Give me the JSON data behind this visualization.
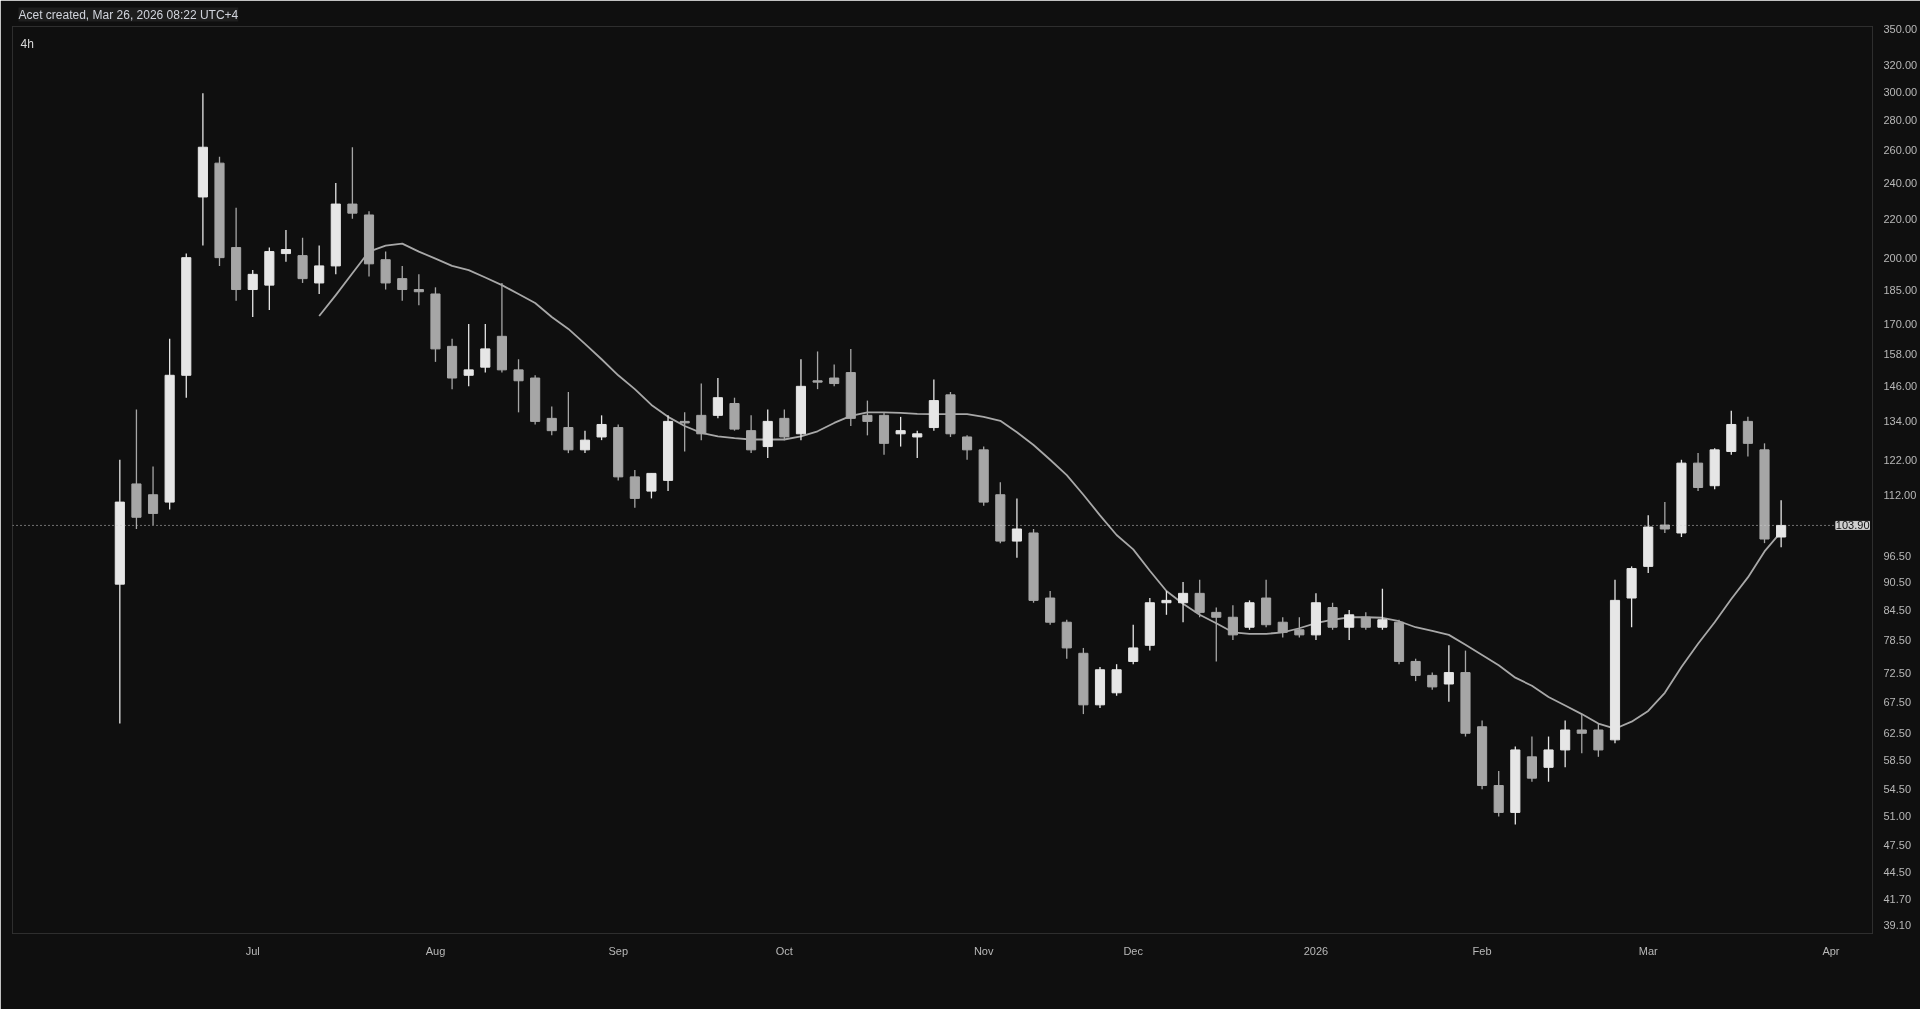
{
  "chart_data": {
    "type": "candlestick",
    "title": "4h",
    "annotations": [
      "Acet created, Mar 26, 2026 08:22 UTC+4"
    ],
    "categories": [
      null,
      null,
      null,
      null,
      null,
      null,
      null,
      null,
      "Jul",
      null,
      null,
      null,
      null,
      null,
      null,
      null,
      null,
      null,
      null,
      "Aug",
      null,
      null,
      null,
      null,
      null,
      null,
      null,
      null,
      null,
      null,
      "Sep",
      null,
      null,
      null,
      null,
      null,
      null,
      null,
      null,
      null,
      "Oct",
      null,
      null,
      null,
      null,
      null,
      null,
      null,
      null,
      null,
      null,
      null,
      "Nov",
      null,
      null,
      null,
      null,
      null,
      null,
      null,
      null,
      "Dec",
      null,
      null,
      null,
      null,
      null,
      null,
      null,
      null,
      null,
      null,
      "2026",
      null,
      null,
      null,
      null,
      null,
      null,
      null,
      null,
      null,
      "Feb",
      null,
      null,
      null,
      null,
      null,
      null,
      null,
      null,
      null,
      "Mar",
      null,
      null,
      null,
      null,
      null,
      null,
      null,
      null,
      null,
      null,
      "Apr"
    ],
    "ohlc": [
      [
        90,
        122,
        64,
        110
      ],
      [
        115,
        138,
        103,
        106
      ],
      [
        112,
        120,
        104,
        107
      ],
      [
        110,
        164,
        108,
        150
      ],
      [
        150,
        202,
        142,
        200
      ],
      [
        232,
        299,
        206,
        262
      ],
      [
        252,
        256,
        196,
        200
      ],
      [
        205,
        226,
        180,
        185
      ],
      [
        185,
        194,
        173,
        192
      ],
      [
        187,
        205,
        176,
        203
      ],
      [
        202,
        214,
        198,
        204
      ],
      [
        201,
        210,
        188,
        190
      ],
      [
        188,
        206,
        183,
        196
      ],
      [
        196,
        240,
        192,
        228
      ],
      [
        228,
        262,
        220,
        223
      ],
      [
        222,
        224,
        191,
        197
      ],
      [
        199,
        203,
        185,
        188
      ],
      [
        190,
        196,
        180,
        185
      ],
      [
        185,
        192,
        178,
        184
      ],
      [
        183,
        186,
        155,
        160
      ],
      [
        161,
        164,
        145,
        149
      ],
      [
        150,
        170,
        146,
        152
      ],
      [
        153,
        170,
        151,
        160
      ],
      [
        165,
        188,
        151,
        152
      ],
      [
        152,
        156,
        137,
        148
      ],
      [
        149,
        150,
        133,
        134
      ],
      [
        135,
        139,
        129.5,
        131
      ],
      [
        132,
        144,
        124,
        125
      ],
      [
        125,
        131,
        124,
        128
      ],
      [
        129,
        136,
        128,
        133
      ],
      [
        132,
        133,
        116,
        117
      ],
      [
        117,
        119,
        108.5,
        111
      ],
      [
        113,
        118,
        111,
        118
      ],
      [
        116,
        136,
        113,
        134
      ],
      [
        134,
        137,
        124.5,
        133.5
      ],
      [
        136,
        147,
        128,
        130
      ],
      [
        136,
        149,
        135,
        142
      ],
      [
        140,
        142,
        131,
        131.5
      ],
      [
        131,
        136,
        124,
        125
      ],
      [
        126,
        138,
        122.5,
        134
      ],
      [
        135,
        138,
        128,
        129
      ],
      [
        130,
        156,
        128,
        146
      ],
      [
        148,
        159,
        145,
        147.5
      ],
      [
        149,
        154,
        146,
        147
      ],
      [
        151,
        160,
        132.5,
        135
      ],
      [
        136,
        141,
        129.5,
        134
      ],
      [
        136,
        137,
        123.5,
        127
      ],
      [
        130,
        135.5,
        126,
        131
      ],
      [
        129,
        131,
        122.5,
        130
      ],
      [
        132,
        148.5,
        131,
        141
      ],
      [
        143,
        144,
        129,
        130
      ],
      [
        129,
        129.5,
        122,
        125
      ],
      [
        125,
        126,
        109,
        110
      ],
      [
        112,
        115.5,
        99.5,
        100
      ],
      [
        100,
        111,
        96,
        103
      ],
      [
        102,
        103,
        86,
        86.5
      ],
      [
        87,
        88.5,
        81.5,
        82
      ],
      [
        82,
        82.5,
        75,
        77
      ],
      [
        76,
        77,
        65.5,
        67
      ],
      [
        67,
        73.5,
        66.5,
        73
      ],
      [
        69,
        74,
        68.5,
        73
      ],
      [
        74.5,
        81.5,
        74,
        77
      ],
      [
        77.5,
        87,
        76.5,
        86
      ],
      [
        86,
        88.5,
        83.5,
        86.5
      ],
      [
        86,
        90.5,
        82,
        88
      ],
      [
        88,
        91,
        83,
        84
      ],
      [
        84,
        85,
        74.5,
        83
      ],
      [
        83,
        85.5,
        78.5,
        79.5
      ],
      [
        81,
        86.5,
        80.5,
        86
      ],
      [
        87,
        91,
        81,
        81.5
      ],
      [
        82,
        83,
        79,
        80
      ],
      [
        80.5,
        83,
        79,
        79.5
      ],
      [
        79.5,
        88,
        78.5,
        86
      ],
      [
        85,
        86,
        80.5,
        81
      ],
      [
        81,
        84.5,
        78.5,
        83.5
      ],
      [
        83,
        84,
        80.5,
        81
      ],
      [
        81,
        89,
        80.5,
        82.5
      ],
      [
        82,
        82.5,
        74,
        74.5
      ],
      [
        74.5,
        75,
        71,
        72
      ],
      [
        72,
        72.5,
        69.5,
        70
      ],
      [
        70.5,
        77.5,
        67.5,
        72.5
      ],
      [
        72.5,
        76.5,
        62,
        62.5
      ],
      [
        63.5,
        64.5,
        54.5,
        55
      ],
      [
        55,
        57,
        51,
        51.5
      ],
      [
        51.5,
        60.5,
        50,
        60
      ],
      [
        59,
        62,
        55.5,
        56
      ],
      [
        57.5,
        62,
        55.5,
        60
      ],
      [
        60,
        64.5,
        57.5,
        63
      ],
      [
        63,
        65.5,
        59.5,
        62.5
      ],
      [
        63,
        64,
        59,
        60
      ],
      [
        61.5,
        91,
        61,
        86.5
      ],
      [
        87,
        94,
        81,
        93.5
      ],
      [
        94,
        106.5,
        92.5,
        103.5
      ],
      [
        104,
        110,
        102,
        103
      ],
      [
        102,
        122,
        101,
        121
      ],
      [
        121,
        124,
        113,
        114
      ],
      [
        114.5,
        125.5,
        113.5,
        125
      ],
      [
        124.5,
        137.5,
        123.5,
        133
      ],
      [
        134,
        135.5,
        123,
        127
      ],
      [
        125,
        127,
        99.5,
        100.5
      ],
      [
        101,
        110.5,
        98.5,
        103.9
      ],
      null,
      null,
      null
    ],
    "colors": [
      "#e6e6e6",
      "#a6a6a6",
      "#a6a6a6",
      "#e6e6e6",
      "#e6e6e6",
      "#e6e6e6",
      "#a6a6a6",
      "#a6a6a6",
      "#e6e6e6",
      "#e6e6e6",
      "#e6e6e6",
      "#a6a6a6",
      "#e6e6e6",
      "#e6e6e6",
      "#a6a6a6",
      "#a6a6a6",
      "#a6a6a6",
      "#a6a6a6",
      "#a6a6a6",
      "#a6a6a6",
      "#a6a6a6",
      "#e6e6e6",
      "#e6e6e6",
      "#a6a6a6",
      "#a6a6a6",
      "#a6a6a6",
      "#a6a6a6",
      "#a6a6a6",
      "#e6e6e6",
      "#e6e6e6",
      "#a6a6a6",
      "#a6a6a6",
      "#e6e6e6",
      "#e6e6e6",
      "#a6a6a6",
      "#a6a6a6",
      "#e6e6e6",
      "#a6a6a6",
      "#a6a6a6",
      "#e6e6e6",
      "#a6a6a6",
      "#e6e6e6",
      "#a6a6a6",
      "#a6a6a6",
      "#a6a6a6",
      "#a6a6a6",
      "#a6a6a6",
      "#e6e6e6",
      "#e6e6e6",
      "#e6e6e6",
      "#a6a6a6",
      "#a6a6a6",
      "#a6a6a6",
      "#a6a6a6",
      "#e6e6e6",
      "#a6a6a6",
      "#a6a6a6",
      "#a6a6a6",
      "#a6a6a6",
      "#e6e6e6",
      "#e6e6e6",
      "#e6e6e6",
      "#e6e6e6",
      "#e6e6e6",
      "#e6e6e6",
      "#a6a6a6",
      "#a6a6a6",
      "#a6a6a6",
      "#e6e6e6",
      "#a6a6a6",
      "#a6a6a6",
      "#a6a6a6",
      "#e6e6e6",
      "#a6a6a6",
      "#e6e6e6",
      "#a6a6a6",
      "#e6e6e6",
      "#a6a6a6",
      "#a6a6a6",
      "#a6a6a6",
      "#e6e6e6",
      "#a6a6a6",
      "#a6a6a6",
      "#a6a6a6",
      "#e6e6e6",
      "#a6a6a6",
      "#e6e6e6",
      "#e6e6e6",
      "#a6a6a6",
      "#a6a6a6",
      "#e6e6e6",
      "#e6e6e6",
      "#e6e6e6",
      "#a6a6a6",
      "#e6e6e6",
      "#a6a6a6",
      "#e6e6e6",
      "#e6e6e6",
      "#a6a6a6",
      "#a6a6a6",
      "#e6e6e6",
      null,
      null,
      null
    ],
    "series": [
      {
        "type": "line",
        "color": "#a8a8a8",
        "values": [
          null,
          null,
          null,
          null,
          null,
          null,
          null,
          null,
          null,
          null,
          null,
          null,
          173.4,
          182.5,
          192.5,
          203,
          206,
          207,
          203,
          199.5,
          196,
          194,
          190.5,
          187,
          183,
          179,
          173,
          168,
          162,
          156,
          150,
          145,
          139.5,
          135.5,
          132.5,
          130.3,
          129.2,
          128.6,
          128.2,
          128.2,
          128.2,
          129.2,
          130.8,
          133.5,
          135.8,
          137,
          137,
          136.8,
          136.5,
          136.4,
          136.4,
          136.4,
          135.5,
          134.2,
          130.5,
          126.5,
          122,
          117.5,
          112,
          106.5,
          101.5,
          98,
          93,
          88.5,
          85.8,
          83.5,
          81.8,
          80,
          79.7,
          79.7,
          80,
          80.8,
          81.8,
          82.5,
          83,
          83,
          82.9,
          82.2,
          81,
          80.3,
          79.5,
          77.6,
          75.7,
          73.8,
          71.6,
          70.2,
          68.3,
          66.9,
          65.5,
          64,
          63.2,
          64.3,
          66,
          69,
          73.5,
          77.8,
          82,
          86.8,
          91.5,
          97.5,
          102.3,
          null,
          null,
          null
        ]
      }
    ],
    "log": true,
    "ylim": [
      38.3,
      352
    ],
    "yticks": [
      {
        "value": 39.1,
        "label": "39.10"
      },
      {
        "value": 41.7,
        "label": "41.70"
      },
      {
        "value": 44.5,
        "label": "44.50"
      },
      {
        "value": 47.5,
        "label": "47.50"
      },
      {
        "value": 51,
        "label": "51.00"
      },
      {
        "value": 54.5,
        "label": "54.50"
      },
      {
        "value": 58.5,
        "label": "58.50"
      },
      {
        "value": 62.5,
        "label": "62.50"
      },
      {
        "value": 67.5,
        "label": "67.50"
      },
      {
        "value": 72.5,
        "label": "72.50"
      },
      {
        "value": 78.5,
        "label": "78.50"
      },
      {
        "value": 84.5,
        "label": "84.50"
      },
      {
        "value": 90.5,
        "label": "90.50"
      },
      {
        "value": 96.5,
        "label": "96.50"
      },
      {
        "value": 112,
        "label": "112.00"
      },
      {
        "value": 122,
        "label": "122.00"
      },
      {
        "value": 134,
        "label": "134.00"
      },
      {
        "value": 146,
        "label": "146.00"
      },
      {
        "value": 158,
        "label": "158.00"
      },
      {
        "value": 170,
        "label": "170.00"
      },
      {
        "value": 185,
        "label": "185.00"
      },
      {
        "value": 200,
        "label": "200.00"
      },
      {
        "value": 220,
        "label": "220.00"
      },
      {
        "value": 240,
        "label": "240.00"
      },
      {
        "value": 260,
        "label": "260.00"
      },
      {
        "value": 280,
        "label": "280.00"
      },
      {
        "value": 300,
        "label": "300.00"
      },
      {
        "value": 320,
        "label": "320.00"
      },
      {
        "value": 350,
        "label": "350.00"
      }
    ],
    "ref_lines": [
      {
        "axis": "y",
        "value": 103.9,
        "label": "103.90",
        "color": "#cfcfcf",
        "line_style": "dotted"
      }
    ]
  }
}
